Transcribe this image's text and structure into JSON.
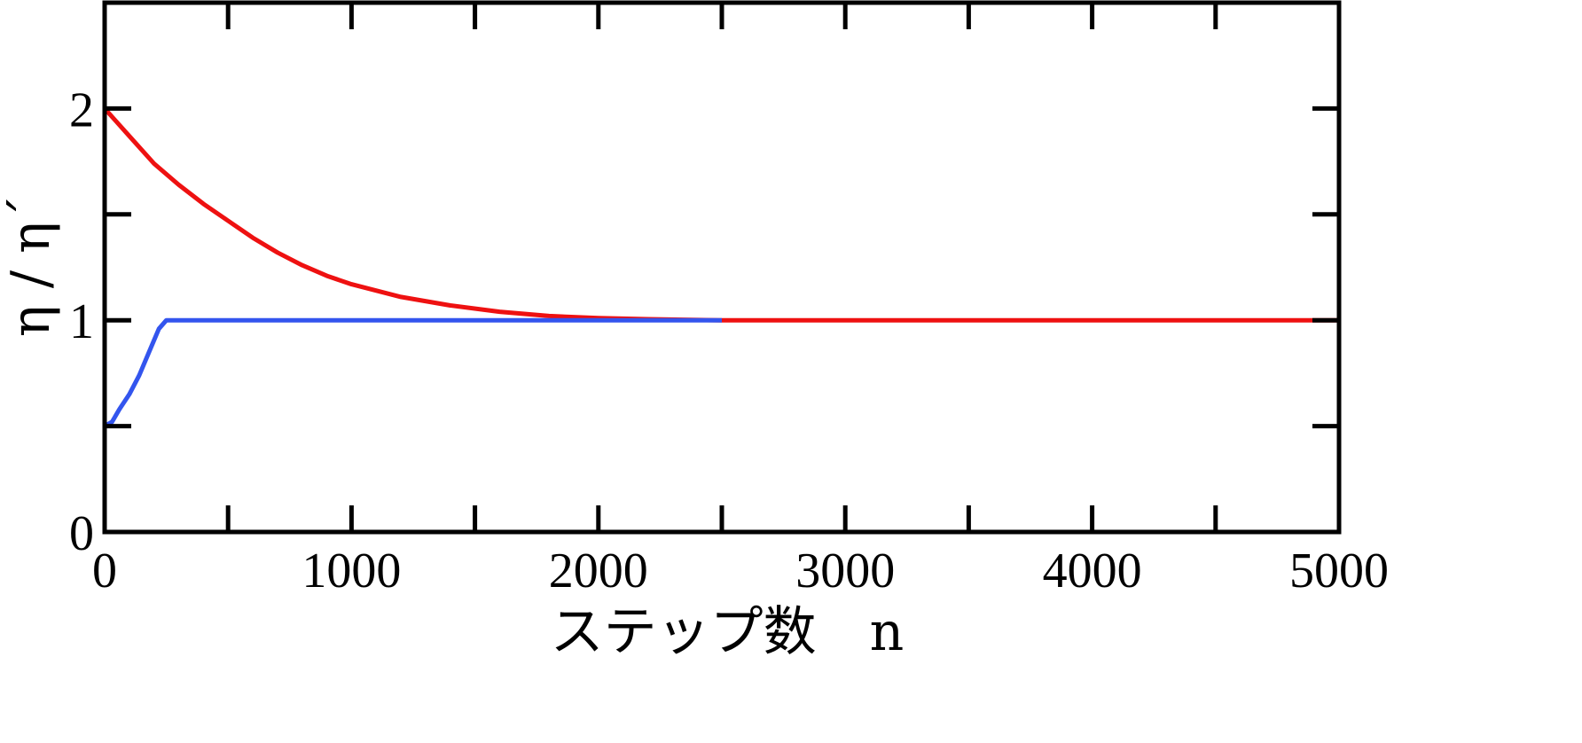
{
  "chart_data": {
    "type": "line",
    "title": "",
    "xlabel": "ステップ数　n",
    "ylabel": "η / η´",
    "xlim": [
      0,
      5000
    ],
    "ylim": [
      0,
      2.5
    ],
    "x_ticks": [
      0,
      500,
      1000,
      1500,
      2000,
      2500,
      3000,
      3500,
      4000,
      4500,
      5000
    ],
    "x_tick_labels": [
      "0",
      "",
      "1000",
      "",
      "2000",
      "",
      "3000",
      "",
      "4000",
      "",
      "5000"
    ],
    "y_ticks": [
      0,
      0.5,
      1,
      1.5,
      2,
      2.5
    ],
    "y_tick_labels": [
      "0",
      "",
      "1",
      "",
      "2",
      ""
    ],
    "grid": false,
    "series": [
      {
        "color": "#ee1111",
        "x": [
          0,
          100,
          200,
          300,
          400,
          500,
          600,
          700,
          800,
          900,
          1000,
          1200,
          1400,
          1600,
          1800,
          2000,
          2200,
          2500,
          3000,
          4000,
          5000
        ],
        "values": [
          2.0,
          1.87,
          1.74,
          1.64,
          1.55,
          1.47,
          1.39,
          1.32,
          1.26,
          1.21,
          1.17,
          1.11,
          1.07,
          1.04,
          1.02,
          1.01,
          1.005,
          1.0,
          1.0,
          1.0,
          1.0
        ]
      },
      {
        "color": "#3355ee",
        "x": [
          0,
          30,
          60,
          100,
          140,
          180,
          220,
          250,
          280,
          350,
          1000,
          2000,
          2500
        ],
        "values": [
          0.5,
          0.52,
          0.58,
          0.65,
          0.74,
          0.85,
          0.96,
          1.0,
          1.0,
          1.0,
          1.0,
          1.0,
          1.0
        ]
      }
    ]
  }
}
